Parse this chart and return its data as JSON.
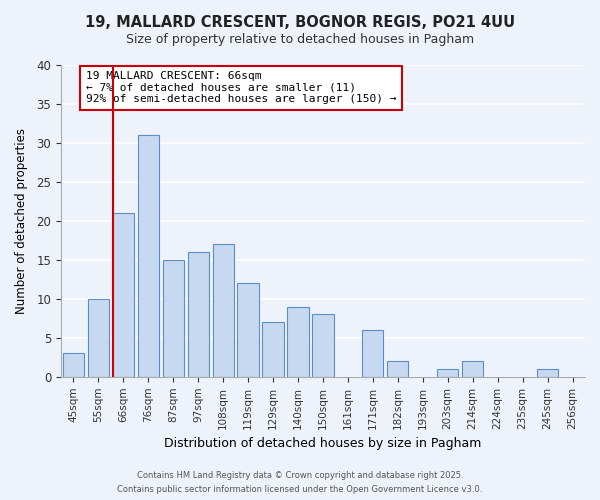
{
  "title": "19, MALLARD CRESCENT, BOGNOR REGIS, PO21 4UU",
  "subtitle": "Size of property relative to detached houses in Pagham",
  "xlabel": "Distribution of detached houses by size in Pagham",
  "ylabel": "Number of detached properties",
  "bar_labels": [
    "45sqm",
    "55sqm",
    "66sqm",
    "76sqm",
    "87sqm",
    "97sqm",
    "108sqm",
    "119sqm",
    "129sqm",
    "140sqm",
    "150sqm",
    "161sqm",
    "171sqm",
    "182sqm",
    "193sqm",
    "203sqm",
    "214sqm",
    "224sqm",
    "235sqm",
    "245sqm",
    "256sqm"
  ],
  "bar_values": [
    3,
    10,
    21,
    31,
    15,
    16,
    17,
    12,
    7,
    9,
    8,
    0,
    6,
    2,
    0,
    1,
    2,
    0,
    0,
    1,
    0
  ],
  "bar_color": "#c7d9f0",
  "bar_edge_color": "#5b8fc9",
  "vline_index": 2,
  "vline_color": "#cc0000",
  "ylim": [
    0,
    40
  ],
  "yticks": [
    0,
    5,
    10,
    15,
    20,
    25,
    30,
    35,
    40
  ],
  "annotation_title": "19 MALLARD CRESCENT: 66sqm",
  "annotation_line1": "← 7% of detached houses are smaller (11)",
  "annotation_line2": "92% of semi-detached houses are larger (150) →",
  "annotation_box_color": "#ffffff",
  "annotation_box_edge": "#cc0000",
  "background_color": "#eef2fb",
  "grid_color": "#ffffff",
  "footer_line1": "Contains HM Land Registry data © Crown copyright and database right 2025.",
  "footer_line2": "Contains public sector information licensed under the Open Government Licence v3.0."
}
